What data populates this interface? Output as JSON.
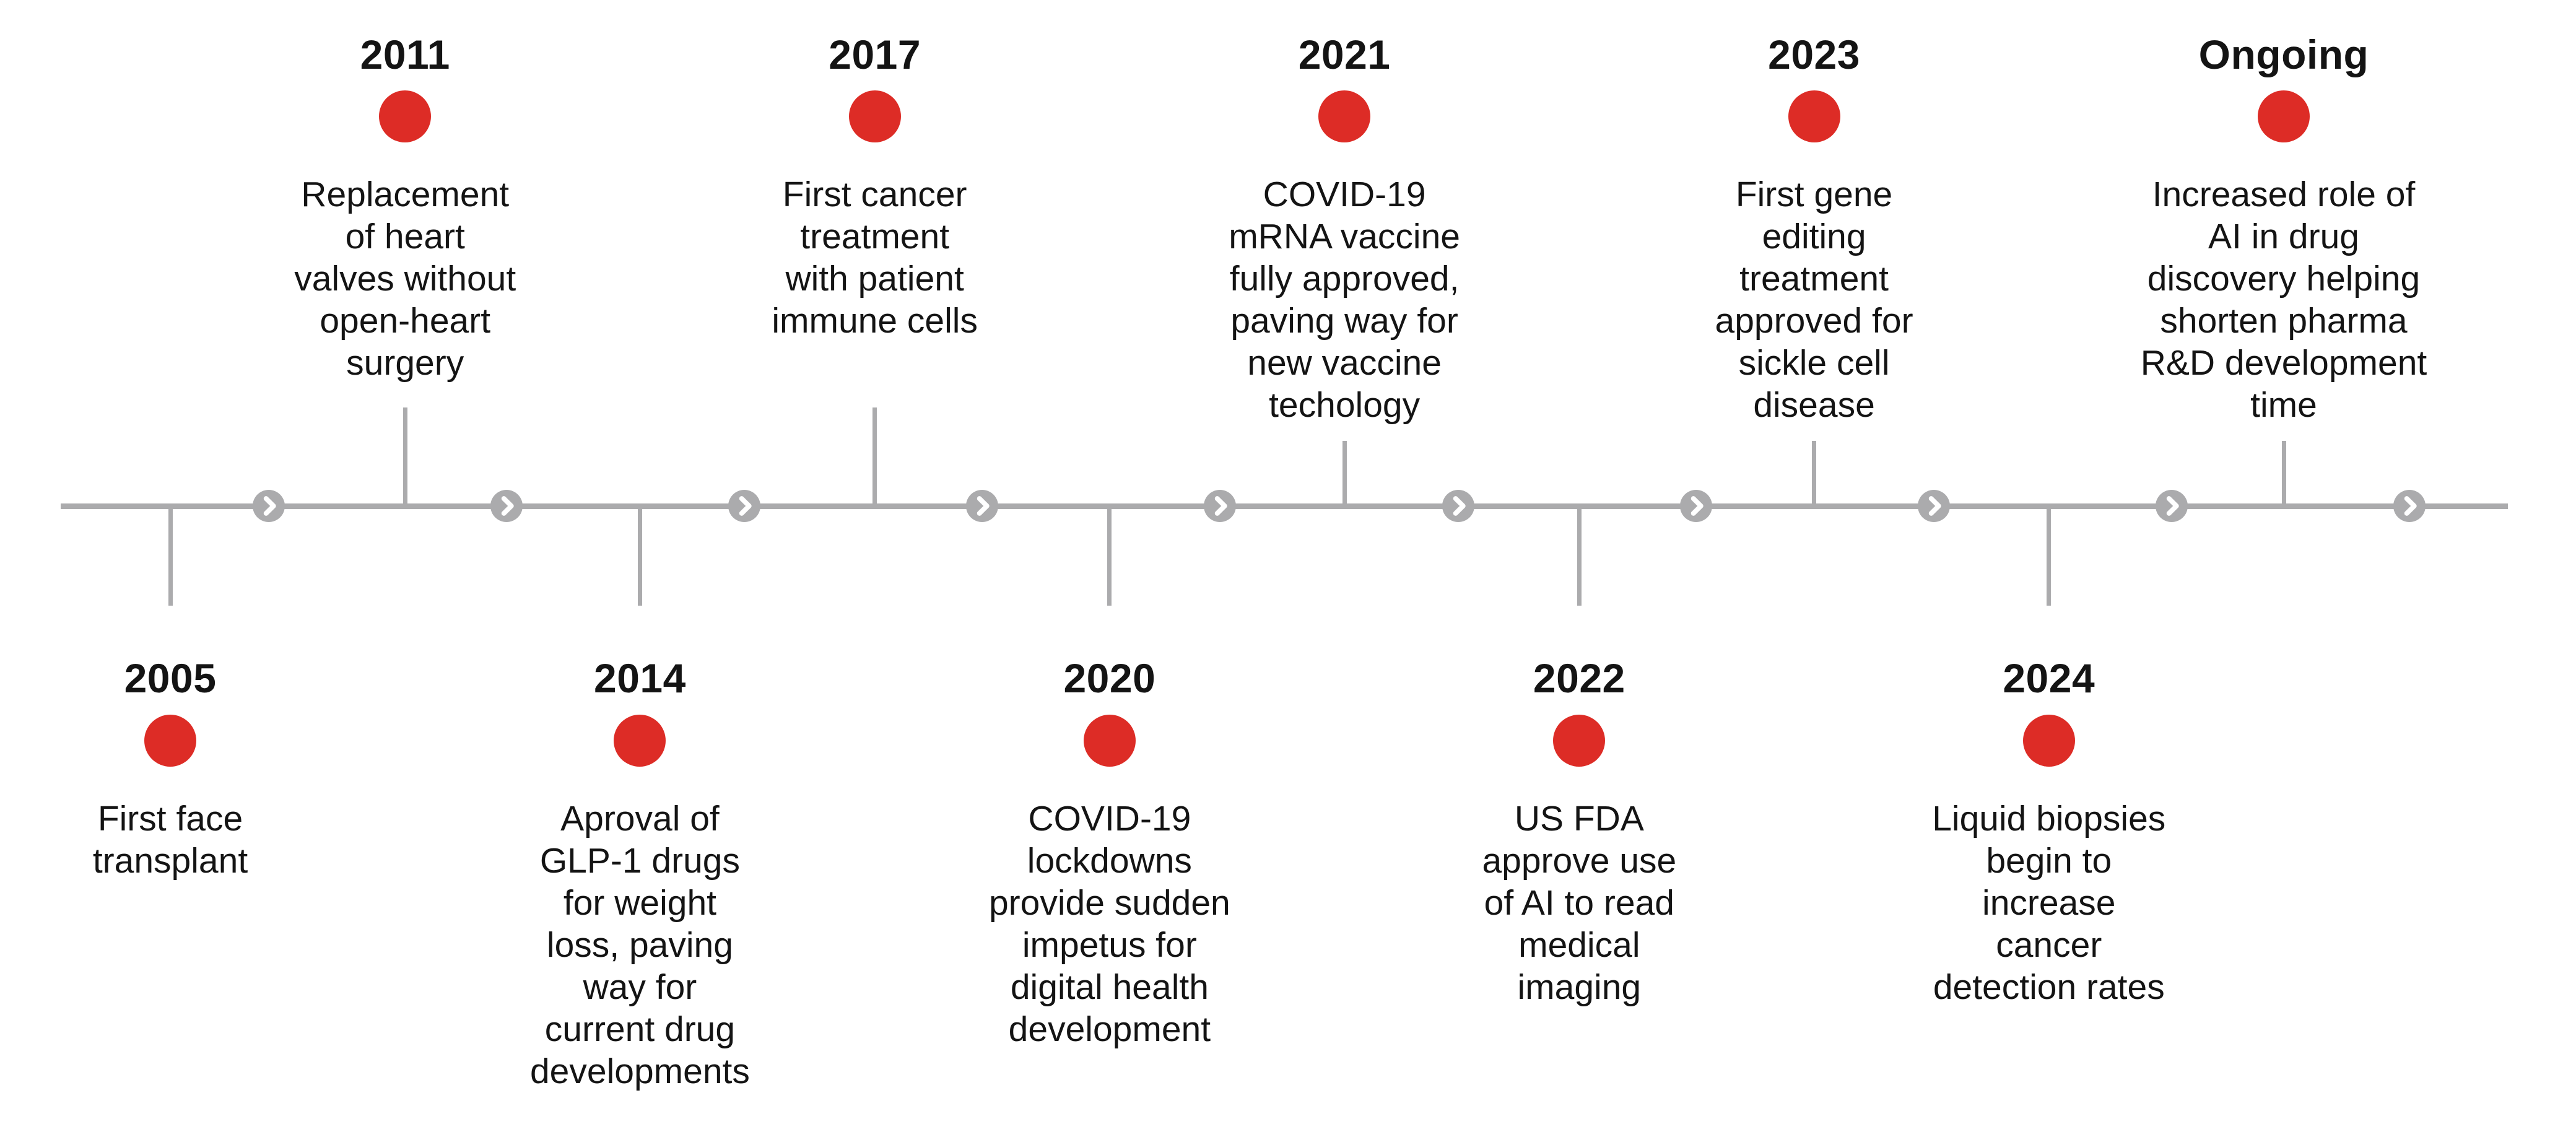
{
  "palette": {
    "dot_red": "#DD2C26",
    "line_gray": "#ABABAD",
    "text_color": "#141414"
  },
  "timeline": {
    "direction": "left-to-right",
    "marker_icon": "chevron-right-icon",
    "marker_count": 10
  },
  "events": [
    {
      "year": "2005",
      "side": "bottom",
      "lines": [
        "First face",
        "transplant"
      ]
    },
    {
      "year": "2011",
      "side": "top",
      "lines": [
        "Replacement",
        "of heart",
        "valves without",
        "open-heart",
        "surgery"
      ]
    },
    {
      "year": "2014",
      "side": "bottom",
      "lines": [
        "Aproval of",
        "GLP-1 drugs",
        "for weight",
        "loss, paving",
        "way for",
        "current drug",
        "developments"
      ]
    },
    {
      "year": "2017",
      "side": "top",
      "lines": [
        "First cancer",
        "treatment",
        "with patient",
        "immune cells"
      ]
    },
    {
      "year": "2020",
      "side": "bottom",
      "lines": [
        "COVID-19",
        "lockdowns",
        "provide sudden",
        "impetus for",
        "digital health",
        "development"
      ]
    },
    {
      "year": "2021",
      "side": "top",
      "lines": [
        "COVID-19",
        "mRNA vaccine",
        "fully  approved,",
        "paving way for",
        "new vaccine",
        "techology"
      ]
    },
    {
      "year": "2022",
      "side": "bottom",
      "lines": [
        "US FDA",
        "approve use",
        "of AI to read",
        "medical",
        "imaging"
      ]
    },
    {
      "year": "2023",
      "side": "top",
      "lines": [
        "First gene",
        "editing",
        "treatment",
        "approved for",
        "sickle cell",
        "disease"
      ]
    },
    {
      "year": "2024",
      "side": "bottom",
      "lines": [
        "Liquid biopsies",
        "begin to",
        "increase",
        "cancer",
        "detection rates"
      ]
    },
    {
      "year": "Ongoing",
      "side": "top",
      "lines": [
        "Increased role of",
        "AI in drug",
        "discovery helping",
        "shorten pharma",
        "R&D development",
        "time"
      ]
    }
  ]
}
